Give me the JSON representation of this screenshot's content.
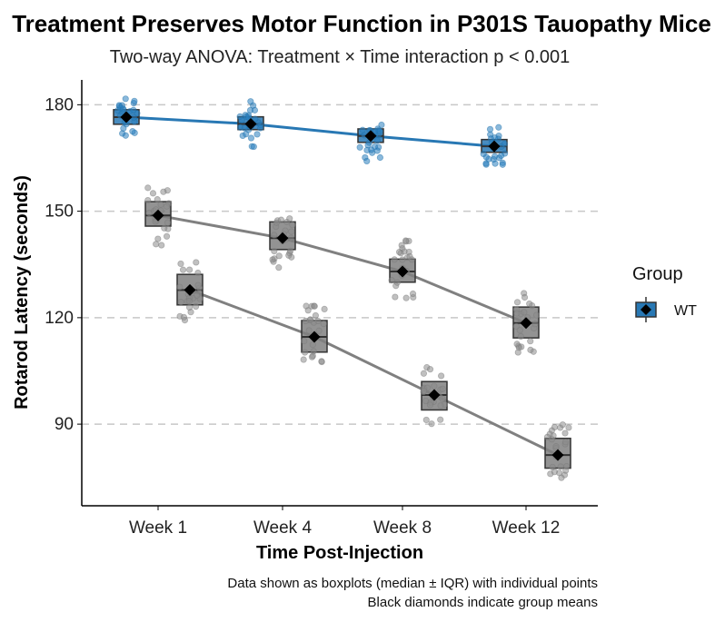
{
  "chart_data": {
    "type": "boxplot",
    "title": "Treatment Preserves Motor Function in P301S Tauopathy Mice",
    "subtitle": "Two-way ANOVA: Treatment × Time interaction p < 0.001",
    "xlabel": "Time Post-Injection",
    "ylabel": "Rotarod Latency (seconds)",
    "categories": [
      "Week 1",
      "Week 4",
      "Week 8",
      "Week 12"
    ],
    "yticks": [
      90,
      120,
      150,
      180
    ],
    "ylim": [
      67,
      187
    ],
    "grid": "horizontal dashed at major ticks",
    "legend": {
      "title": "Group",
      "position": "right",
      "entries": [
        {
          "label": "WT",
          "color": "#2878b4"
        }
      ]
    },
    "series": [
      {
        "name": "WT",
        "color": "#2878b4",
        "mean": [
          176.5,
          174.6,
          171.2,
          168.3
        ],
        "median": [
          176.5,
          174.6,
          171.2,
          168.3
        ],
        "q1": [
          174.5,
          173.0,
          169.4,
          166.6
        ],
        "q3": [
          178.6,
          176.6,
          173.2,
          170.2
        ],
        "points_range": [
          [
            170,
            182
          ],
          [
            168,
            181
          ],
          [
            164,
            177
          ],
          [
            162,
            174
          ]
        ]
      },
      {
        "color": "#808080",
        "mean": [
          148.8,
          142.4,
          133.0,
          118.5
        ],
        "median": [
          148.8,
          142.4,
          133.0,
          118.5
        ],
        "q1": [
          145.8,
          139.2,
          130.0,
          114.3
        ],
        "q3": [
          152.7,
          147.0,
          136.5,
          123.0
        ],
        "points_range": [
          [
            140,
            157
          ],
          [
            133,
            151
          ],
          [
            125,
            142
          ],
          [
            110,
            127
          ]
        ]
      },
      {
        "color": "#808080",
        "mean": [
          127.8,
          114.6,
          98.2,
          81.3
        ],
        "median": [
          127.8,
          114.6,
          98.2,
          81.3
        ],
        "q1": [
          123.6,
          110.3,
          94.0,
          77.6
        ],
        "q3": [
          132.2,
          119.2,
          102.0,
          86.0
        ],
        "points_range": [
          [
            119,
            137
          ],
          [
            105,
            124
          ],
          [
            90,
            107
          ],
          [
            73,
            91
          ]
        ]
      }
    ],
    "caption": [
      "Data shown as boxplots (median ± IQR) with individual points",
      "Black diamonds indicate group means"
    ]
  }
}
